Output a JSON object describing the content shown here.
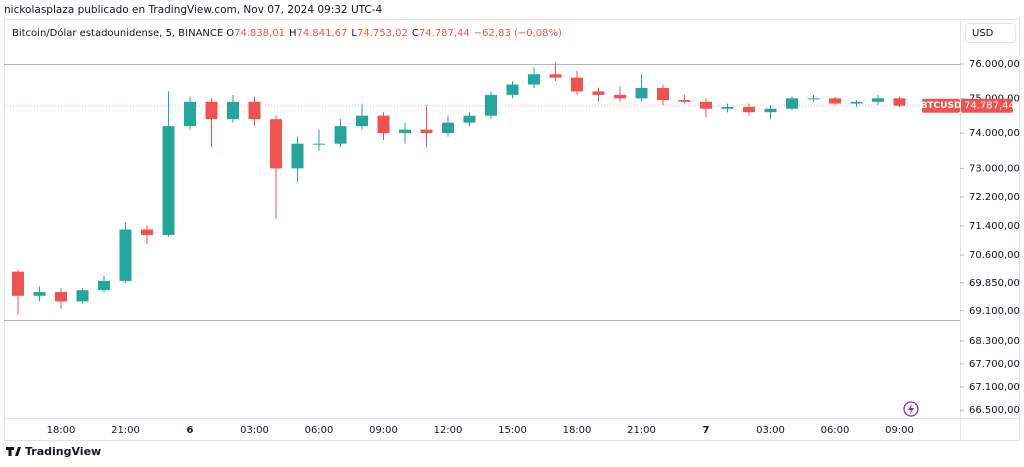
{
  "header": "nickolasplaza publicado en TradingView.com, Nov 07, 2024 09:32 UTC-4",
  "footer": "TradingView",
  "chart_data": {
    "type": "candlestick",
    "symbol_title": "Bitcoin/Dólar estadounidense, 5, BINANCE",
    "ohlc_legend": [
      {
        "key": "O",
        "value": 74838.01,
        "label": "74.838,01"
      },
      {
        "key": "H",
        "value": 74841.67,
        "label": "74.841,67"
      },
      {
        "key": "L",
        "value": 74753.02,
        "label": "74.753,02"
      },
      {
        "key": "C",
        "value": 74787.44,
        "label": "74.787,44"
      }
    ],
    "change": "−62,83 (−0,08%)",
    "currency": "USD",
    "symbol": "BTCUSD",
    "last_price": {
      "value": 74787.44,
      "label": "74.787,44"
    },
    "categories": [
      null,
      null,
      "18:00",
      null,
      null,
      "21:00",
      null,
      null,
      "6",
      null,
      null,
      "03:00",
      null,
      null,
      "06:00",
      null,
      null,
      "09:00",
      null,
      null,
      "12:00",
      null,
      null,
      "15:00",
      null,
      null,
      "18:00",
      null,
      null,
      "21:00",
      null,
      null,
      "7",
      null,
      null,
      "03:00",
      null,
      null,
      "06:00",
      null,
      null,
      "09:00"
    ],
    "open": [
      70150,
      69500,
      69600,
      69350,
      69650,
      69900,
      71300,
      71150,
      74200,
      74900,
      74400,
      74900,
      74400,
      73000,
      73700,
      73700,
      74200,
      74500,
      74000,
      74100,
      74000,
      74300,
      74500,
      75100,
      75400,
      75700,
      75600,
      75200,
      75100,
      75000,
      75300,
      74950,
      74900,
      74700,
      74750,
      74600,
      74700,
      75000,
      75000,
      74850,
      74900,
      75000
    ],
    "high": [
      70200,
      69750,
      69700,
      69700,
      70050,
      71500,
      71400,
      75200,
      75050,
      75000,
      75100,
      75050,
      74500,
      73900,
      74100,
      74400,
      74850,
      74600,
      74300,
      74800,
      74500,
      74600,
      75200,
      75500,
      75900,
      76050,
      75800,
      75300,
      75350,
      75700,
      75400,
      75100,
      75000,
      74850,
      74850,
      74800,
      75050,
      75100,
      75050,
      74950,
      75100,
      75050
    ],
    "low": [
      69000,
      69350,
      69150,
      69300,
      69600,
      69850,
      70900,
      71100,
      74100,
      73600,
      74300,
      74200,
      71600,
      72600,
      73500,
      73600,
      74100,
      73800,
      73700,
      73600,
      73900,
      74200,
      74400,
      75000,
      75300,
      75500,
      75100,
      74900,
      74900,
      74900,
      74800,
      74850,
      74450,
      74600,
      74500,
      74400,
      74650,
      74900,
      74800,
      74750,
      74800,
      74750
    ],
    "close": [
      69500,
      69600,
      69350,
      69650,
      69900,
      71300,
      71150,
      74200,
      74900,
      74400,
      74900,
      74400,
      73000,
      73700,
      73700,
      74200,
      74500,
      74000,
      74100,
      74000,
      74300,
      74500,
      75100,
      75400,
      75700,
      75600,
      75200,
      75100,
      75000,
      75300,
      74950,
      74900,
      74700,
      74750,
      74600,
      74700,
      75000,
      75000,
      74850,
      74900,
      75000,
      74787.44
    ],
    "up_color": "#26a69a",
    "down_color": "#ef5350",
    "log_scale": true,
    "ylim": [
      66300,
      77450
    ],
    "yticks": [
      {
        "value": 76000,
        "label": "76.000,00"
      },
      {
        "value": 75000,
        "label": "75.000,00"
      },
      {
        "value": 74000,
        "label": "74.000,00"
      },
      {
        "value": 73000,
        "label": "73.000,00"
      },
      {
        "value": 72200,
        "label": "72.200,00"
      },
      {
        "value": 71400,
        "label": "71.400,00"
      },
      {
        "value": 70600,
        "label": "70.600,00"
      },
      {
        "value": 69850,
        "label": "69.850,00"
      },
      {
        "value": 69100,
        "label": "69.100,00"
      },
      {
        "value": 68300,
        "label": "68.300,00"
      },
      {
        "value": 67700,
        "label": "67.700,00"
      },
      {
        "value": 67100,
        "label": "67.100,00"
      },
      {
        "value": 66500,
        "label": "66.500,00"
      }
    ],
    "horizontal_lines": [
      76000,
      68850
    ]
  }
}
